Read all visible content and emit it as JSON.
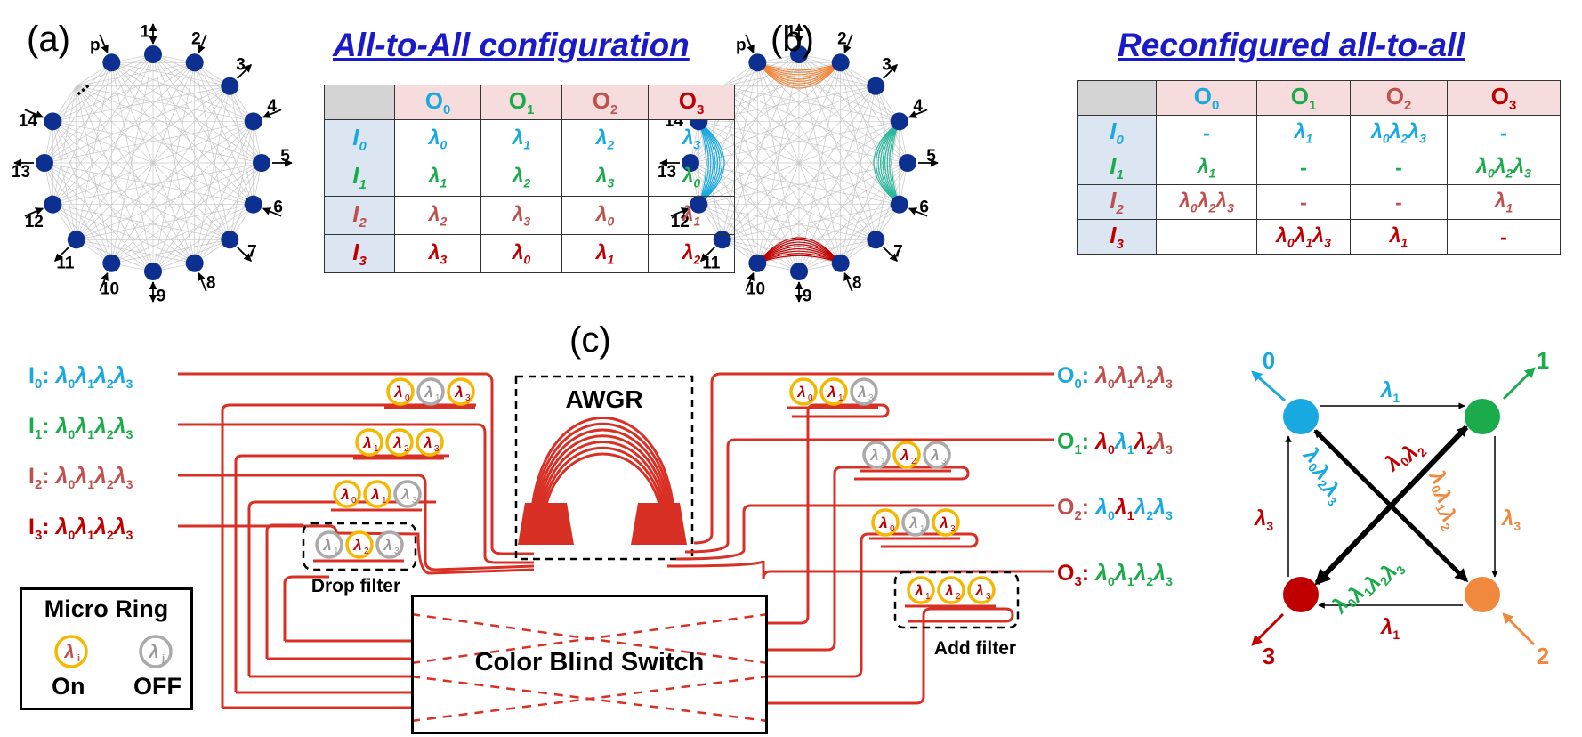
{
  "panels": {
    "a": "(a)",
    "b": "(b)",
    "c": "(c)"
  },
  "titles": {
    "a": "All-to-All configuration",
    "b": "Reconfigured all-to-all"
  },
  "graph_node_labels": [
    "p",
    "1",
    "2",
    "3",
    "4",
    "5",
    "6",
    "7",
    "8",
    "9",
    "10",
    "11",
    "12",
    "13",
    "14",
    "..."
  ],
  "colors": {
    "I0": "#19a9e1",
    "I1": "#1aab4b",
    "I2": "#c0504d",
    "I3": "#c00000",
    "orange": "#f0883e",
    "ring_on": "#f5b800",
    "ring_off": "#aaaaaa",
    "node": "#0d2f8f",
    "waveguide": "#d93025",
    "title_blue": "#1a1ac8"
  },
  "table_a": {
    "headers": [
      "O",
      "O",
      "O",
      "O"
    ],
    "header_subs": [
      "0",
      "1",
      "2",
      "3"
    ],
    "row_labels": [
      "I",
      "I",
      "I",
      "I"
    ],
    "row_subs": [
      "0",
      "1",
      "2",
      "3"
    ],
    "rows": [
      [
        [
          "0"
        ],
        [
          "1"
        ],
        [
          "2"
        ],
        [
          "3"
        ]
      ],
      [
        [
          "1"
        ],
        [
          "2"
        ],
        [
          "3"
        ],
        [
          "0"
        ]
      ],
      [
        [
          "2"
        ],
        [
          "3"
        ],
        [
          "0"
        ],
        [
          "1"
        ]
      ],
      [
        [
          "3"
        ],
        [
          "0"
        ],
        [
          "1"
        ],
        [
          "2"
        ]
      ]
    ]
  },
  "table_b": {
    "headers": [
      "O",
      "O",
      "O",
      "O"
    ],
    "header_subs": [
      "0",
      "1",
      "2",
      "3"
    ],
    "row_labels": [
      "I",
      "I",
      "I",
      "I"
    ],
    "row_subs": [
      "0",
      "1",
      "2",
      "3"
    ],
    "rows": [
      [
        [
          "-"
        ],
        [
          "1"
        ],
        [
          "0",
          "2",
          "3"
        ],
        [
          "-"
        ]
      ],
      [
        [
          "1"
        ],
        [
          "-"
        ],
        [
          "-"
        ],
        [
          "0",
          "2",
          "3"
        ]
      ],
      [
        [
          "0",
          "2",
          "3"
        ],
        [
          "-"
        ],
        [
          "-"
        ],
        [
          "1"
        ]
      ],
      [
        [
          ""
        ],
        [
          "0",
          "1",
          "3"
        ],
        [
          "1"
        ],
        [
          "-"
        ]
      ]
    ]
  },
  "inputs": [
    {
      "name": "I",
      "sub": "0",
      "lambdas": [
        "0",
        "1",
        "2",
        "3"
      ]
    },
    {
      "name": "I",
      "sub": "1",
      "lambdas": [
        "0",
        "1",
        "2",
        "3"
      ]
    },
    {
      "name": "I",
      "sub": "2",
      "lambdas": [
        "0",
        "1",
        "2",
        "3"
      ]
    },
    {
      "name": "I",
      "sub": "3",
      "lambdas": [
        "0",
        "1",
        "2",
        "3"
      ]
    }
  ],
  "outputs": [
    {
      "name": "O",
      "sub": "0",
      "lambdas": [
        "0",
        "1",
        "2",
        "3"
      ]
    },
    {
      "name": "O",
      "sub": "1",
      "lambdas": [
        "0",
        "1",
        "2",
        "3"
      ]
    },
    {
      "name": "O",
      "sub": "2",
      "lambdas": [
        "0",
        "1",
        "2",
        "3"
      ]
    },
    {
      "name": "O",
      "sub": "3",
      "lambdas": [
        "0",
        "1",
        "2",
        "3"
      ]
    }
  ],
  "lambda_symbol": "λ",
  "awgr_label": "AWGR",
  "drop_filter_label": "Drop filter",
  "add_filter_label": "Add filter",
  "switch_label": "Color Blind Switch",
  "legend": {
    "title": "Micro Ring",
    "on_sub": "i",
    "off_sub": "j",
    "on": "On",
    "off": "OFF"
  },
  "rings": [
    {
      "group": "drop-I0",
      "subs": [
        "0",
        "1",
        "3"
      ],
      "states": [
        "on",
        "off",
        "on"
      ]
    },
    {
      "group": "drop-I1",
      "subs": [
        "1",
        "2",
        "3"
      ],
      "states": [
        "on",
        "on",
        "on"
      ]
    },
    {
      "group": "drop-I2",
      "subs": [
        "0",
        "1",
        "3"
      ],
      "states": [
        "on",
        "on",
        "off"
      ]
    },
    {
      "group": "drop-I3",
      "subs": [
        "1",
        "2",
        "3"
      ],
      "states": [
        "off",
        "on",
        "off"
      ]
    },
    {
      "group": "add-O0",
      "subs": [
        "0",
        "1",
        "3"
      ],
      "states": [
        "on",
        "on",
        "off"
      ]
    },
    {
      "group": "add-O1",
      "subs": [
        "1",
        "2",
        "3"
      ],
      "states": [
        "off",
        "on",
        "off"
      ]
    },
    {
      "group": "add-O2",
      "subs": [
        "0",
        "1",
        "3"
      ],
      "states": [
        "on",
        "off",
        "on"
      ]
    },
    {
      "group": "add-O3",
      "subs": [
        "1",
        "2",
        "3"
      ],
      "states": [
        "on",
        "on",
        "on"
      ]
    }
  ],
  "topology": {
    "node_labels": [
      "0",
      "1",
      "2",
      "3"
    ],
    "edge_labels": {
      "top": "1",
      "bottom": "1",
      "left": "3",
      "right": "3",
      "diag_a": [
        "0",
        "2"
      ],
      "diag_b": [
        "0",
        "2",
        "3"
      ],
      "diag_c": [
        "0",
        "1",
        "2"
      ],
      "diag_d": [
        "0",
        "1",
        "2",
        "3"
      ]
    }
  }
}
